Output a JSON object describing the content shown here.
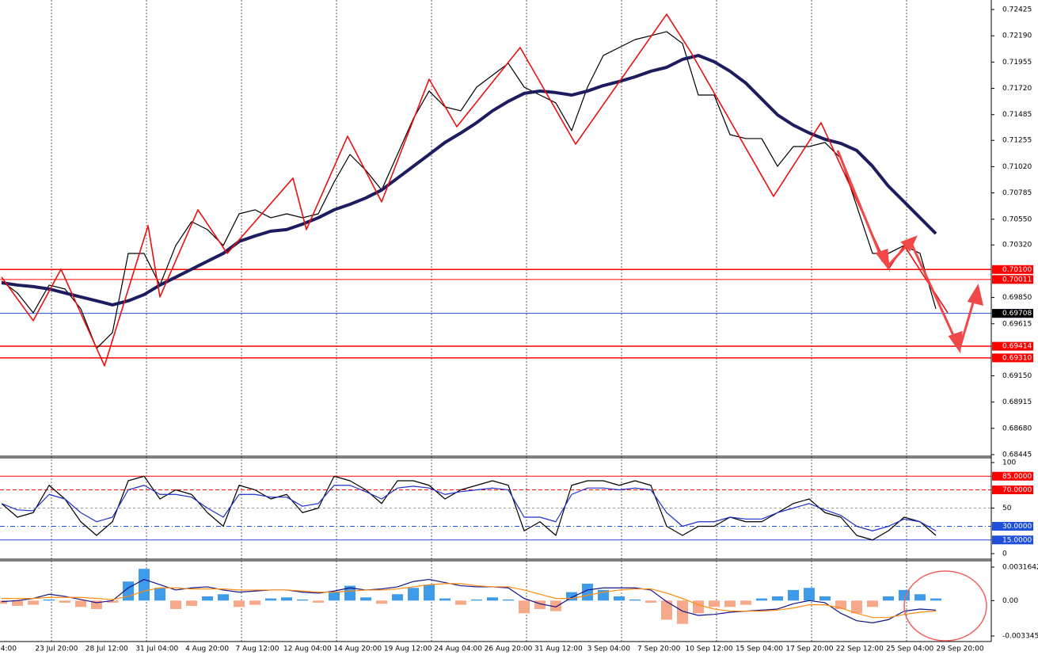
{
  "chart_data": [
    {
      "type": "line",
      "ylim": [
        0.68445,
        0.72425
      ],
      "yticks": [
        0.72425,
        {
          "value": 0.7219,
          "label": "0.72190"
        },
        0.71955,
        {
          "value": 0.7172,
          "label": "0.71720"
        },
        0.71485,
        0.71255,
        {
          "value": 0.7102,
          "label": "0.71020"
        },
        0.70785,
        {
          "value": 0.7055,
          "label": "0.70550"
        },
        {
          "value": 0.7032,
          "label": "0.70320"
        },
        {
          "value": 0.6985,
          "label": "0.69850"
        },
        0.69615,
        {
          "value": 0.6915,
          "label": "0.69150"
        },
        0.68915,
        {
          "value": 0.6868,
          "label": "0.68680"
        },
        0.68445
      ],
      "hlines": [
        {
          "value": 0.701,
          "label": "0.70100"
        },
        0.70011,
        0.69708,
        0.69414,
        {
          "value": 0.6931,
          "label": "0.69310"
        }
      ],
      "hline_colors": [
        "#ff0000",
        "#ff0000",
        "#1e50dc",
        "#ff0000",
        "#ff0000"
      ],
      "current_price": 0.69708,
      "series": [
        {
          "color": "#000000",
          "values": [
            0.69997,
            0.6989,
            0.69713,
            0.69961,
            0.69926,
            0.69749,
            0.69395,
            0.69536,
            0.70244,
            0.70244,
            0.69961,
            0.70315,
            0.70528,
            0.70457,
            0.70315,
            0.70598,
            0.70634,
            0.70563,
            0.70598,
            0.70563,
            0.70598,
            0.70882,
            0.71129,
            0.70988,
            0.70811,
            0.71129,
            0.71448,
            0.71696,
            0.71554,
            0.71519,
            0.71731,
            0.71837,
            0.71944,
            0.71731,
            0.7166,
            0.7159,
            0.71342,
            0.71731,
            0.72014,
            0.72085,
            0.72156,
            0.72191,
            0.72227,
            0.72121,
            0.7166,
            0.7166,
            0.71306,
            0.71271,
            0.71271,
            0.71023,
            0.712,
            0.712,
            0.71236,
            0.71094,
            0.70669,
            0.70244,
            0.70244,
            0.70315,
            0.70244,
            0.69749
          ]
        },
        {
          "color": "#1c1c5e",
          "values": [
            0.69982,
            0.69961,
            0.69947,
            0.69926,
            0.6989,
            0.69855,
            0.6982,
            0.69784,
            0.6982,
            0.69876,
            0.69961,
            0.70032,
            0.70103,
            0.70174,
            0.70244,
            0.70351,
            0.704,
            0.70443,
            0.70457,
            0.70506,
            0.70563,
            0.70634,
            0.70683,
            0.7074,
            0.70811,
            0.70917,
            0.71023,
            0.71129,
            0.71236,
            0.71321,
            0.71413,
            0.71519,
            0.71604,
            0.71675,
            0.71696,
            0.71682,
            0.7166,
            0.71696,
            0.71745,
            0.71781,
            0.71823,
            0.71873,
            0.71908,
            0.71979,
            0.72014,
            0.71958,
            0.71873,
            0.71767,
            0.71625,
            0.71483,
            0.71391,
            0.71321,
            0.71264,
            0.71228,
            0.71165,
            0.71023,
            0.70846,
            0.70705,
            0.70563,
            0.70421
          ]
        },
        {
          "color": "#e81010",
          "x": [
            0,
            2,
            3.75,
            6.5,
            9.25,
            10,
            12.4,
            14.25,
            18.4,
            19.25,
            21.85,
            24,
            27,
            28.75,
            32.75,
            36.25,
            42,
            43.5,
            48.75,
            51.75,
            56,
            57,
            59.75
          ],
          "values": [
            0.70032,
            0.69643,
            0.70103,
            0.69239,
            0.70492,
            0.69855,
            0.70634,
            0.70244,
            0.70917,
            0.70457,
            0.71292,
            0.70705,
            0.71802,
            0.71377,
            0.72085,
            0.71221,
            0.72383,
            0.7205,
            0.70754,
            0.71413,
            0.70103,
            0.70315,
            0.69713
          ]
        }
      ]
    },
    {
      "type": "line",
      "ylim": [
        0,
        100
      ],
      "yticks": [
        100,
        50,
        0
      ],
      "hlines": [
        {
          "value": 85,
          "label": "85.0000"
        },
        {
          "value": 70,
          "label": "70.0000"
        },
        {
          "value": 30,
          "label": "30.0000"
        },
        {
          "value": 15,
          "label": "15.0000"
        }
      ],
      "hline_colors": [
        "#ff0000",
        "#ff0000",
        "#1e50dc",
        "#1e50dc"
      ],
      "series": [
        {
          "color": "#000000",
          "values": [
            55,
            40,
            45,
            75,
            60,
            35,
            20,
            35,
            80,
            85,
            60,
            70,
            65,
            45,
            30,
            75,
            70,
            60,
            65,
            45,
            50,
            85,
            80,
            70,
            55,
            80,
            80,
            75,
            60,
            70,
            75,
            80,
            75,
            25,
            35,
            20,
            75,
            80,
            80,
            75,
            80,
            75,
            30,
            20,
            30,
            30,
            40,
            35,
            35,
            45,
            55,
            60,
            45,
            40,
            20,
            15,
            25,
            40,
            35,
            20
          ]
        },
        {
          "color": "#2030c8",
          "values": [
            55,
            48,
            47,
            65,
            60,
            45,
            35,
            40,
            70,
            75,
            65,
            65,
            62,
            50,
            40,
            65,
            65,
            62,
            62,
            52,
            55,
            75,
            75,
            68,
            60,
            72,
            74,
            72,
            65,
            68,
            70,
            72,
            70,
            40,
            40,
            35,
            65,
            72,
            72,
            70,
            72,
            70,
            45,
            30,
            35,
            35,
            40,
            38,
            38,
            45,
            50,
            55,
            48,
            42,
            30,
            25,
            30,
            38,
            35,
            25
          ]
        }
      ]
    },
    {
      "type": "macd",
      "ylim": [
        -0.003345,
        0.0031642
      ],
      "yticks": [
        0.0031642,
        {
          "value": 0,
          "label": "0.00"
        },
        -0.003345
      ],
      "bar_colors": [
        "#3d9be9",
        "#f6a88a"
      ],
      "bars": [
        -0.0003,
        -0.0005,
        -0.0004,
        0.0001,
        -0.0002,
        -0.0006,
        -0.0008,
        -0.0002,
        0.0018,
        0.003,
        0.0012,
        -0.0008,
        -0.0005,
        0.0004,
        0.0006,
        -0.0006,
        -0.0004,
        0.0002,
        0.0003,
        0.0001,
        -0.0002,
        0.0008,
        0.0014,
        0.0003,
        -0.0003,
        0.0006,
        0.0012,
        0.0015,
        0.0002,
        -0.0004,
        0.0001,
        0.0003,
        0.0001,
        -0.0012,
        -0.0008,
        -0.001,
        0.0008,
        0.0016,
        0.001,
        0.0004,
        0.0001,
        -0.0002,
        -0.0018,
        -0.0022,
        -0.0012,
        -0.0006,
        -0.0006,
        -0.0004,
        0.0002,
        0.0004,
        0.001,
        0.0012,
        0.0004,
        -0.0008,
        -0.0012,
        -0.0006,
        0.0004,
        0.001,
        0.0006,
        0.0002
      ],
      "series": [
        {
          "color": "#12128a",
          "values": [
            -0.0001,
            0,
            0.0002,
            0.0006,
            0.0004,
            0.0001,
            -0.0002,
            0,
            0.0012,
            0.002,
            0.0015,
            0.001,
            0.0012,
            0.0013,
            0.001,
            0.0008,
            0.0009,
            0.001,
            0.001,
            0.0008,
            0.0007,
            0.0009,
            0.0012,
            0.001,
            0.0011,
            0.0013,
            0.0018,
            0.002,
            0.0017,
            0.0014,
            0.0013,
            0.0013,
            0.0012,
            0.0002,
            -0.0003,
            -0.0006,
            0.0003,
            0.001,
            0.0012,
            0.0012,
            0.0012,
            0.001,
            -0.0001,
            -0.001,
            -0.0014,
            -0.0013,
            -0.0011,
            -0.001,
            -0.0009,
            -0.0008,
            -0.0003,
            0,
            -0.0002,
            -0.0012,
            -0.0019,
            -0.0021,
            -0.0018,
            -0.001,
            -0.0008,
            -0.0009
          ]
        },
        {
          "color": "#ff8c10",
          "values": [
            0.0002,
            0.0002,
            0.0002,
            0.0003,
            0.0003,
            0.0003,
            0.0002,
            0.0001,
            0.0004,
            0.0009,
            0.0012,
            0.0012,
            0.0011,
            0.0011,
            0.0011,
            0.001,
            0.001,
            0.001,
            0.001,
            0.0009,
            0.0008,
            0.0008,
            0.0009,
            0.001,
            0.001,
            0.0011,
            0.0013,
            0.0015,
            0.0016,
            0.0016,
            0.0014,
            0.0013,
            0.0013,
            0.001,
            0.0006,
            0.0002,
            0.0002,
            0.0005,
            0.0008,
            0.001,
            0.0011,
            0.0011,
            0.0007,
            0.0002,
            -0.0004,
            -0.0008,
            -0.001,
            -0.001,
            -0.001,
            -0.0009,
            -0.0007,
            -0.0004,
            -0.0004,
            -0.0007,
            -0.0012,
            -0.0016,
            -0.0016,
            -0.0013,
            -0.0011,
            -0.001
          ]
        }
      ],
      "xtick_labels": [
        "04:00",
        "23 Jul 20:00",
        "28 Jul 12:00",
        "31 Jul 04:00",
        "4 Aug 20:00",
        "7 Aug 12:00",
        "12 Aug 04:00",
        "14 Aug 20:00",
        "19 Aug 12:00",
        "24 Aug 04:00",
        "26 Aug 20:00",
        "31 Aug 12:00",
        "3 Sep 04:00",
        "7 Sep 20:00",
        "10 Sep 12:00",
        "15 Sep 04:00",
        "17 Sep 20:00",
        "22 Sep 12:00",
        "25 Sep 04:00",
        "29 Sep 20:00"
      ]
    }
  ]
}
